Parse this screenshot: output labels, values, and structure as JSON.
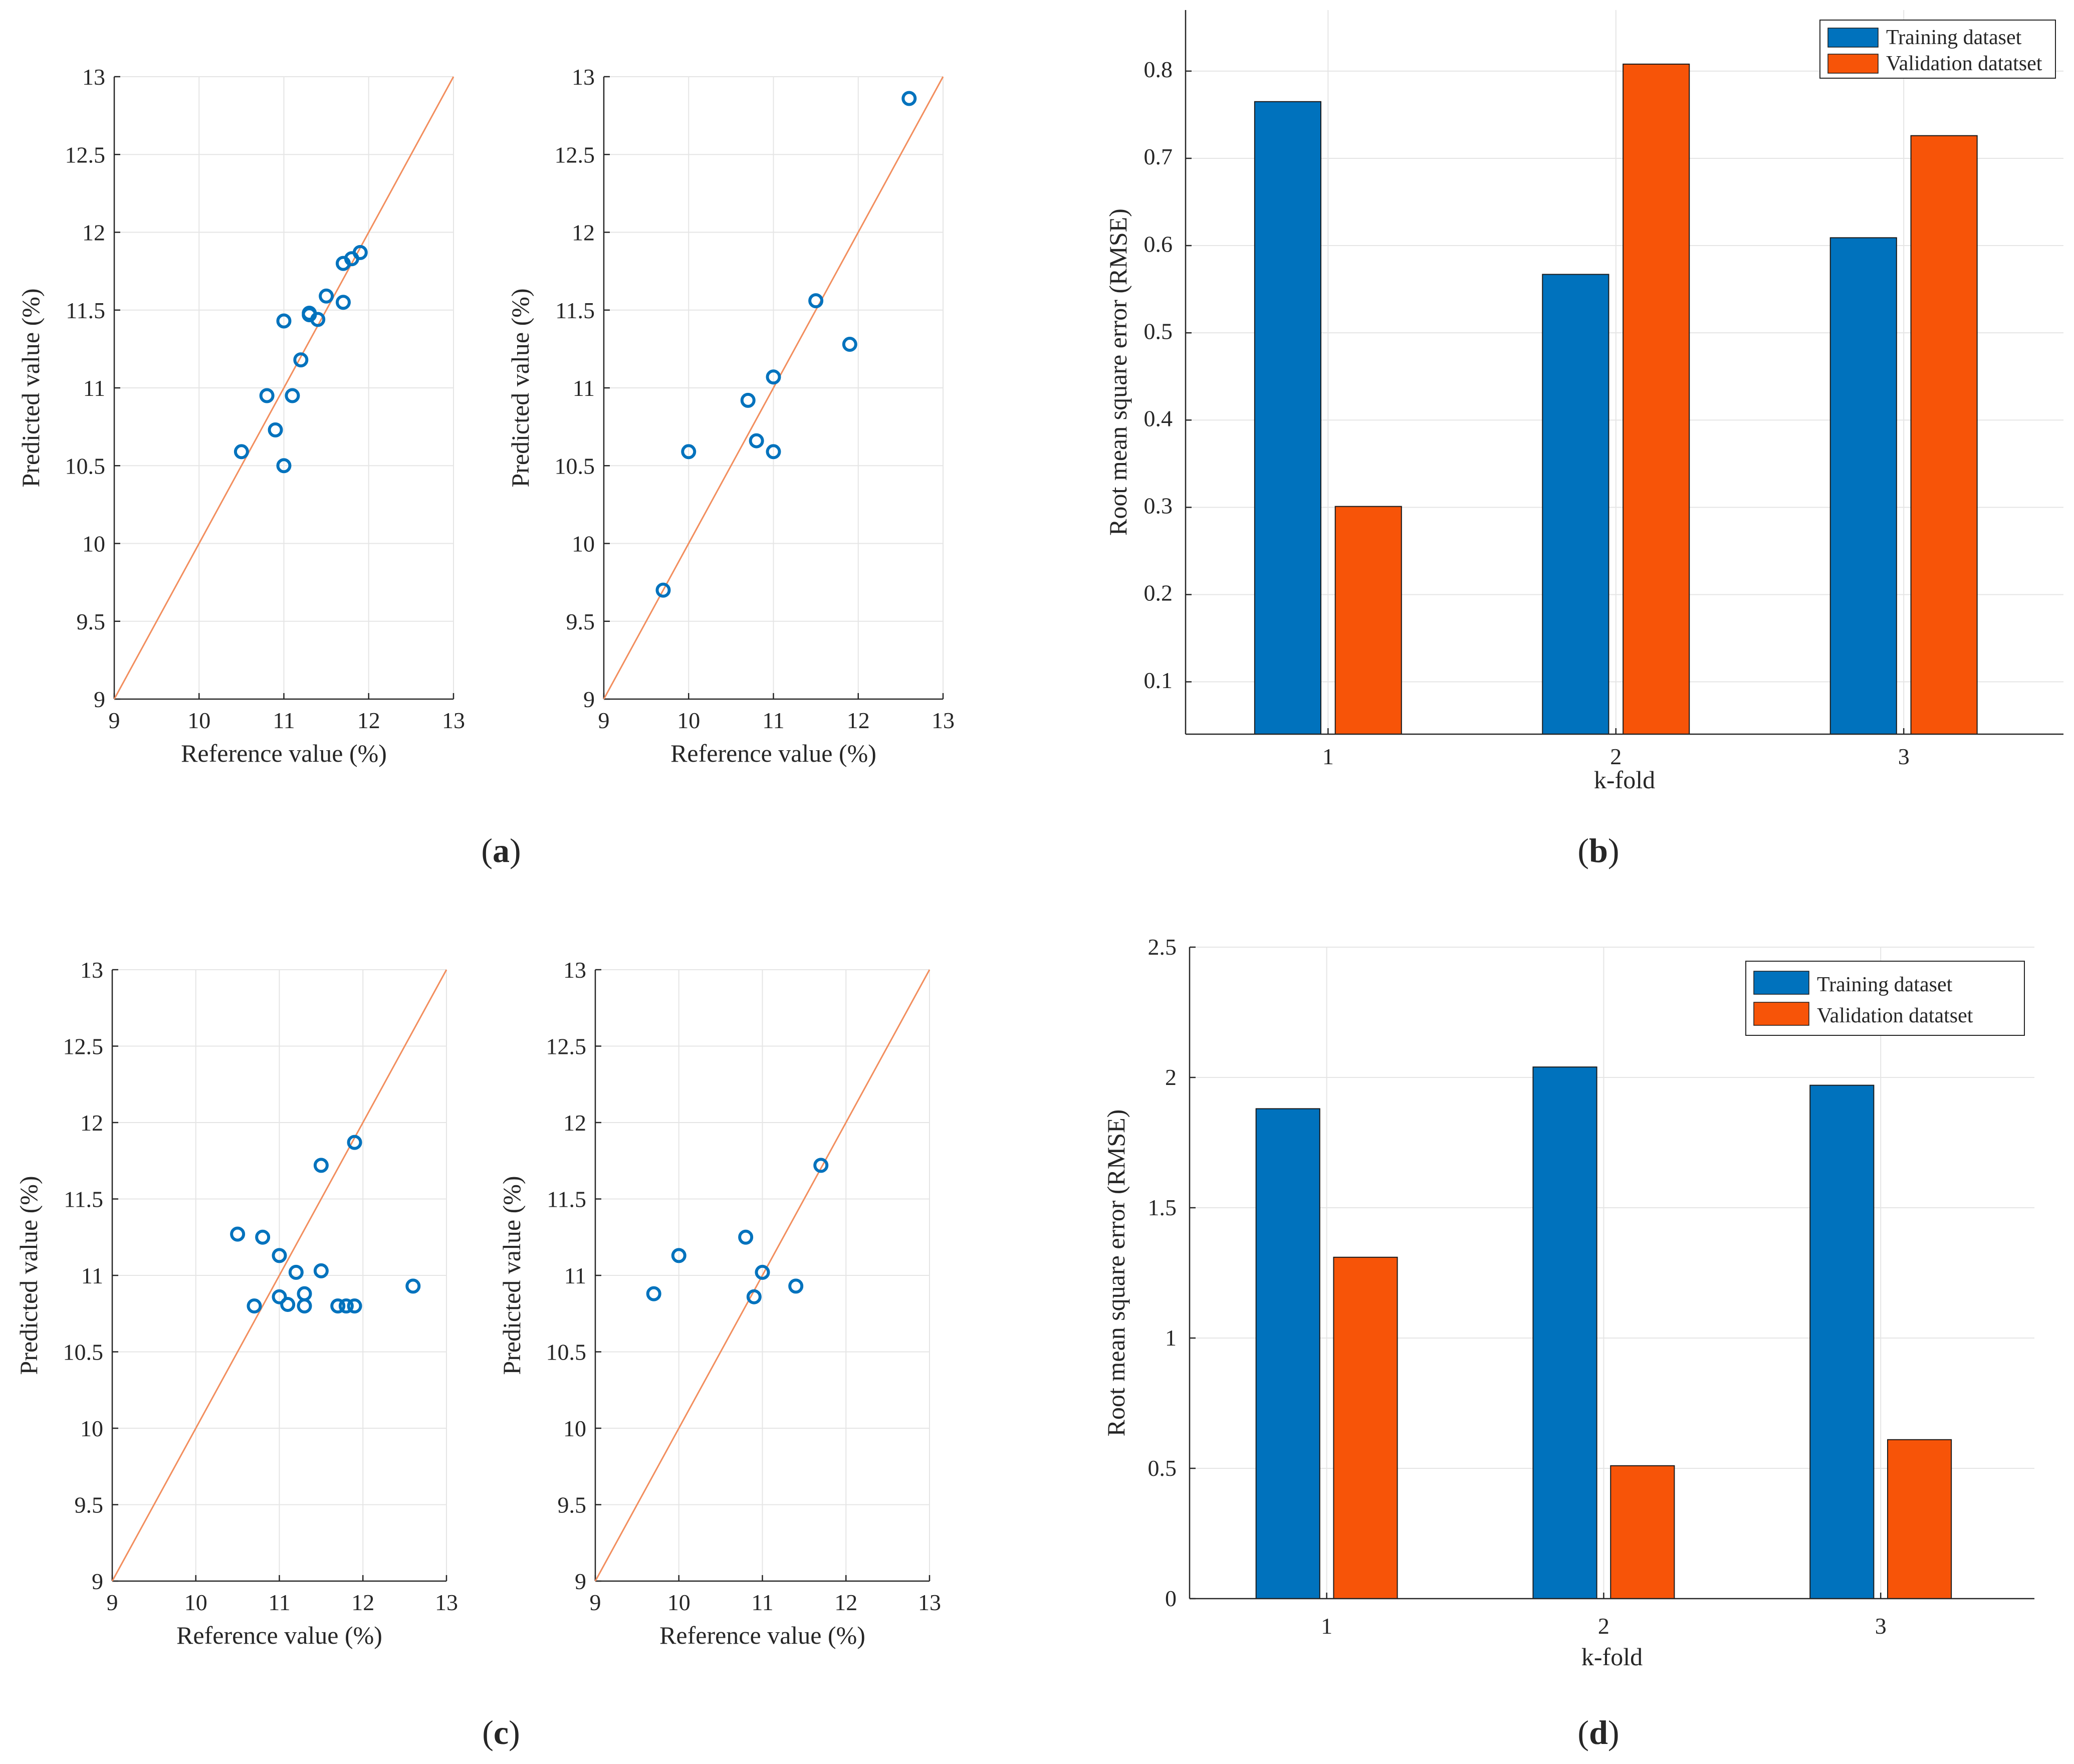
{
  "colors": {
    "identity_line": "#f28e5e",
    "marker": "#0072bd",
    "training": "#0072bd",
    "validation": "#f75408",
    "grid": "#e5e5e5",
    "axis": "#262626"
  },
  "panels": {
    "a": {
      "label": "a",
      "open": "(",
      "close": ")"
    },
    "b": {
      "label": "b",
      "open": "(",
      "close": ")"
    },
    "c": {
      "label": "c",
      "open": "(",
      "close": ")"
    },
    "d": {
      "label": "d",
      "open": "(",
      "close": ")"
    }
  },
  "chart_data": [
    {
      "id": "a-left",
      "panel": "a",
      "type": "scatter",
      "xlabel": "Reference value (%)",
      "ylabel": "Predicted value (%)",
      "xlim": [
        9,
        13
      ],
      "ylim": [
        9,
        13
      ],
      "xticks": [
        9,
        10,
        11,
        12,
        13
      ],
      "yticks": [
        9,
        9.5,
        10,
        10.5,
        11,
        11.5,
        12,
        12.5,
        13
      ],
      "identity_line": [
        [
          9,
          9
        ],
        [
          13,
          13
        ]
      ],
      "x": [
        10.5,
        10.8,
        10.9,
        11.0,
        11.0,
        11.1,
        11.2,
        11.3,
        11.3,
        11.4,
        11.5,
        11.7,
        11.7,
        11.8,
        11.9
      ],
      "y": [
        10.59,
        10.95,
        10.73,
        10.5,
        11.43,
        10.95,
        11.18,
        11.48,
        11.47,
        11.44,
        11.59,
        11.55,
        11.8,
        11.83,
        11.87
      ]
    },
    {
      "id": "a-right",
      "panel": "a",
      "type": "scatter",
      "xlabel": "Reference value (%)",
      "ylabel": "Predicted value (%)",
      "xlim": [
        9,
        13
      ],
      "ylim": [
        9,
        13
      ],
      "xticks": [
        9,
        10,
        11,
        12,
        13
      ],
      "yticks": [
        9,
        9.5,
        10,
        10.5,
        11,
        11.5,
        12,
        12.5,
        13
      ],
      "identity_line": [
        [
          9,
          9
        ],
        [
          13,
          13
        ]
      ],
      "x": [
        9.7,
        10.0,
        10.7,
        10.8,
        11.0,
        11.0,
        11.5,
        11.9,
        12.6
      ],
      "y": [
        9.7,
        10.59,
        10.92,
        10.66,
        11.07,
        10.59,
        11.56,
        11.28,
        12.86
      ]
    },
    {
      "id": "b",
      "panel": "b",
      "type": "bar",
      "xlabel": "k-fold",
      "ylabel": "Root mean square error (RMSE)",
      "ylim": [
        0.04,
        0.87
      ],
      "yticks": [
        0.1,
        0.2,
        0.3,
        0.4,
        0.5,
        0.6,
        0.7,
        0.8
      ],
      "categories": [
        "1",
        "2",
        "3"
      ],
      "legend_position": "top-right",
      "series": [
        {
          "name": "Training dataset",
          "values": [
            0.765,
            0.567,
            0.609
          ]
        },
        {
          "name": "Validation datatset",
          "values": [
            0.301,
            0.808,
            0.726
          ]
        }
      ]
    },
    {
      "id": "c-left",
      "panel": "c",
      "type": "scatter",
      "xlabel": "Reference value (%)",
      "ylabel": "Predicted value (%)",
      "xlim": [
        9,
        13
      ],
      "ylim": [
        9,
        13
      ],
      "xticks": [
        9,
        10,
        11,
        12,
        13
      ],
      "yticks": [
        9,
        9.5,
        10,
        10.5,
        11,
        11.5,
        12,
        12.5,
        13
      ],
      "identity_line": [
        [
          9,
          9
        ],
        [
          13,
          13
        ]
      ],
      "x": [
        10.5,
        10.7,
        10.8,
        11.0,
        11.0,
        11.1,
        11.2,
        11.3,
        11.3,
        11.5,
        11.5,
        11.7,
        11.8,
        11.9,
        11.9,
        12.6
      ],
      "y": [
        11.27,
        10.8,
        11.25,
        11.13,
        10.86,
        10.81,
        11.02,
        10.88,
        10.8,
        11.03,
        11.72,
        10.8,
        10.8,
        10.8,
        11.87,
        10.93
      ]
    },
    {
      "id": "c-right",
      "panel": "c",
      "type": "scatter",
      "xlabel": "Reference value (%)",
      "ylabel": "Predicted value (%)",
      "xlim": [
        9,
        13
      ],
      "ylim": [
        9,
        13
      ],
      "xticks": [
        9,
        10,
        11,
        12,
        13
      ],
      "yticks": [
        9,
        9.5,
        10,
        10.5,
        11,
        11.5,
        12,
        12.5,
        13
      ],
      "identity_line": [
        [
          9,
          9
        ],
        [
          13,
          13
        ]
      ],
      "x": [
        9.7,
        10.0,
        10.8,
        10.9,
        11.0,
        11.4,
        11.7
      ],
      "y": [
        10.88,
        11.13,
        11.25,
        10.86,
        11.02,
        10.93,
        11.72
      ]
    },
    {
      "id": "d",
      "panel": "d",
      "type": "bar",
      "xlabel": "k-fold",
      "ylabel": "Root mean square error (RMSE)",
      "ylim": [
        0,
        2.5
      ],
      "yticks": [
        0,
        0.5,
        1,
        1.5,
        2,
        2.5
      ],
      "categories": [
        "1",
        "2",
        "3"
      ],
      "legend_position": "top-right",
      "series": [
        {
          "name": "Training dataset",
          "values": [
            1.88,
            2.04,
            1.97
          ]
        },
        {
          "name": "Validation datatset",
          "values": [
            1.31,
            0.51,
            0.61
          ]
        }
      ]
    }
  ]
}
